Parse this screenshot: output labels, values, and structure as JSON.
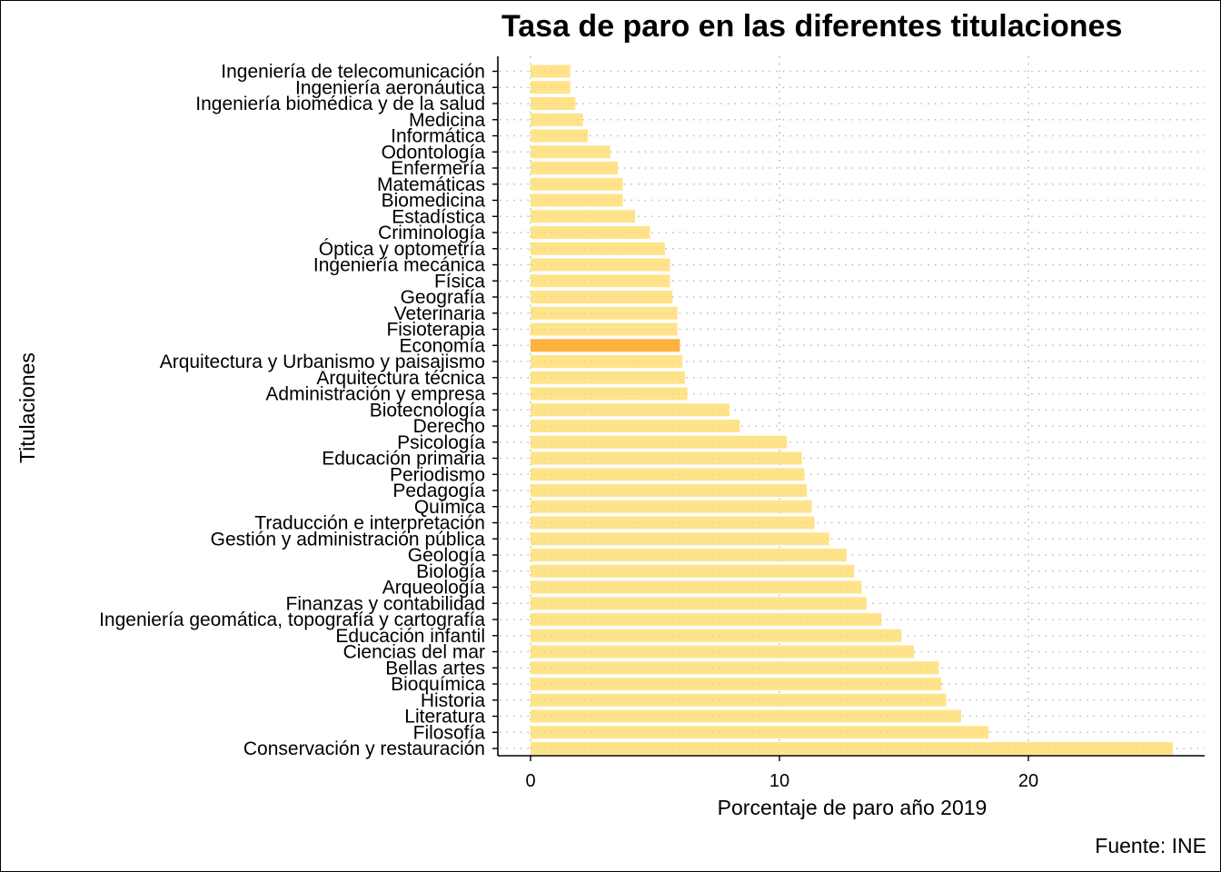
{
  "chart_data": {
    "type": "bar",
    "orientation": "horizontal",
    "title": "Tasa de paro en las diferentes titulaciones",
    "xlabel": "Porcentaje de paro año 2019",
    "ylabel": "Titulaciones",
    "caption": "Fuente: INE",
    "xlim": [
      0,
      26.5
    ],
    "xticks": [
      0,
      10,
      20
    ],
    "grid": "dotted",
    "colors": {
      "bar": "#ffe38a",
      "highlight": "#ffb13d",
      "grid": "#bdbdbd"
    },
    "highlight": "Economía",
    "categories": [
      "Ingeniería de telecomunicación",
      "Ingeniería aeronáutica",
      "Ingeniería biomédica y de la salud",
      "Medicina",
      "Informática",
      "Odontología",
      "Enfermería",
      "Matemáticas",
      "Biomedicina",
      "Estadística",
      "Criminología",
      "Óptica y optometría",
      "Ingeniería mecánica",
      "Física",
      "Geografía",
      "Veterinaria",
      "Fisioterapia",
      "Economía",
      "Arquitectura y Urbanismo y paisajismo",
      "Arquitectura técnica",
      "Administración y empresa",
      "Biotecnología",
      "Derecho",
      "Psicología",
      "Educación primaria",
      "Periodismo",
      "Pedagogía",
      "Química",
      "Traducción e interpretación",
      "Gestión y administración pública",
      "Geología",
      "Biología",
      "Arqueología",
      "Finanzas y contabilidad",
      "Ingeniería geomática, topografía y cartografía",
      "Educación infantil",
      "Ciencias del mar",
      "Bellas artes",
      "Bioquímica",
      "Historia",
      "Literatura",
      "Filosofía",
      "Conservación y restauración"
    ],
    "values": [
      1.6,
      1.6,
      1.8,
      2.1,
      2.3,
      3.2,
      3.5,
      3.7,
      3.7,
      4.2,
      4.8,
      5.4,
      5.6,
      5.6,
      5.7,
      5.9,
      5.9,
      6.0,
      6.1,
      6.2,
      6.3,
      8.0,
      8.4,
      10.3,
      10.9,
      11.0,
      11.1,
      11.3,
      11.4,
      12.0,
      12.7,
      13.0,
      13.3,
      13.5,
      14.1,
      14.9,
      15.4,
      16.4,
      16.5,
      16.7,
      17.3,
      18.4,
      25.8
    ]
  }
}
